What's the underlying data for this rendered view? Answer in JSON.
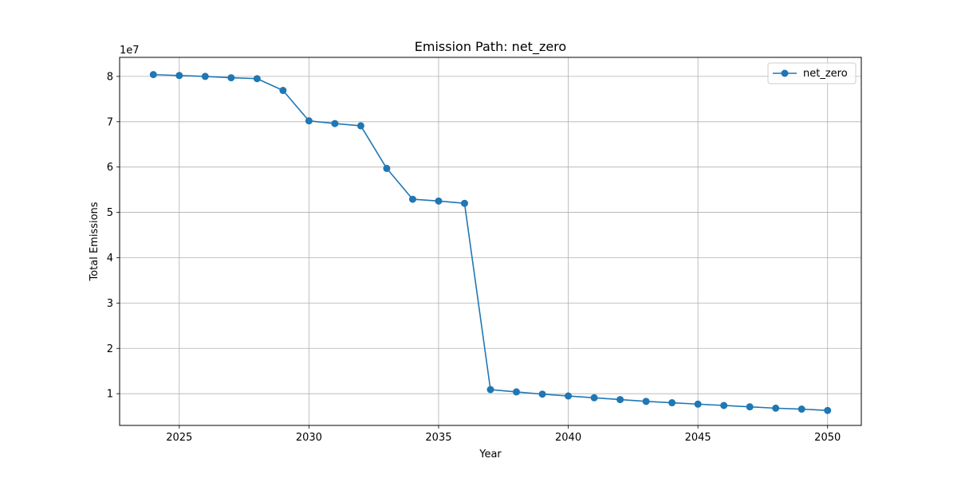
{
  "chart_data": {
    "type": "line",
    "title": "Emission Path: net_zero",
    "xlabel": "Year",
    "ylabel": "Total Emissions",
    "y_offset_label": "1e7",
    "xlim": [
      2022.7,
      2051.3
    ],
    "ylim": [
      3000000,
      84200000
    ],
    "x_ticks": [
      2025,
      2030,
      2035,
      2040,
      2045,
      2050
    ],
    "y_ticks": [
      10000000,
      20000000,
      30000000,
      40000000,
      50000000,
      60000000,
      70000000,
      80000000
    ],
    "x_tick_labels": [
      "2025",
      "2030",
      "2035",
      "2040",
      "2045",
      "2050"
    ],
    "y_tick_labels": [
      "1",
      "2",
      "3",
      "4",
      "5",
      "6",
      "7",
      "8"
    ],
    "grid": true,
    "legend": {
      "position": "top-right",
      "entries": [
        "net_zero"
      ]
    },
    "series": [
      {
        "name": "net_zero",
        "color": "#1f77b4",
        "marker": "circle",
        "x": [
          2024,
          2025,
          2026,
          2027,
          2028,
          2029,
          2030,
          2031,
          2032,
          2033,
          2034,
          2035,
          2036,
          2037,
          2038,
          2039,
          2040,
          2041,
          2042,
          2043,
          2044,
          2045,
          2046,
          2047,
          2048,
          2049,
          2050
        ],
        "y": [
          80400000,
          80200000,
          80000000,
          79700000,
          79500000,
          76900000,
          70200000,
          69600000,
          69100000,
          59700000,
          52900000,
          52500000,
          52000000,
          10900000,
          10400000,
          9900000,
          9500000,
          9100000,
          8700000,
          8300000,
          8000000,
          7700000,
          7400000,
          7100000,
          6800000,
          6600000,
          6300000
        ]
      }
    ]
  }
}
